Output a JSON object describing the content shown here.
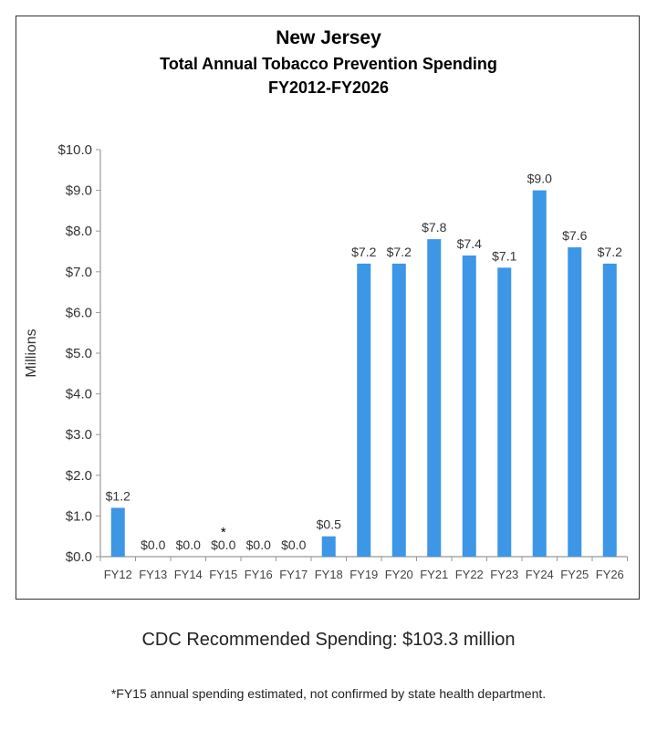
{
  "chart_data": {
    "type": "bar",
    "title": "New Jersey",
    "subtitle": "Total Annual Tobacco Prevention Spending",
    "subtitle2": "FY2012-FY2026",
    "xlabel": "",
    "ylabel": "Millions",
    "ylim": [
      0,
      10
    ],
    "yticks": [
      "$0.0",
      "$1.0",
      "$2.0",
      "$3.0",
      "$4.0",
      "$5.0",
      "$6.0",
      "$7.0",
      "$8.0",
      "$9.0",
      "$10.0"
    ],
    "grid": false,
    "bar_color": "#3d96e6",
    "categories": [
      "FY12",
      "FY13",
      "FY14",
      "FY15",
      "FY16",
      "FY17",
      "FY18",
      "FY19",
      "FY20",
      "FY21",
      "FY22",
      "FY23",
      "FY24",
      "FY25",
      "FY26"
    ],
    "values": [
      1.2,
      0.0,
      0.0,
      0.0,
      0.0,
      0.0,
      0.5,
      7.2,
      7.2,
      7.8,
      7.4,
      7.1,
      9.0,
      7.6,
      7.2
    ],
    "data_labels": [
      "$1.2",
      "$0.0",
      "$0.0",
      "$0.0",
      "$0.0",
      "$0.0",
      "$0.5",
      "$7.2",
      "$7.2",
      "$7.8",
      "$7.4",
      "$7.1",
      "$9.0",
      "$7.6",
      "$7.2"
    ],
    "annotations": [
      {
        "category": "FY15",
        "text": "*"
      }
    ]
  },
  "footer": {
    "recommended": "CDC Recommended Spending: $103.3 million",
    "note": "*FY15 annual spending estimated, not confirmed by state health department."
  }
}
